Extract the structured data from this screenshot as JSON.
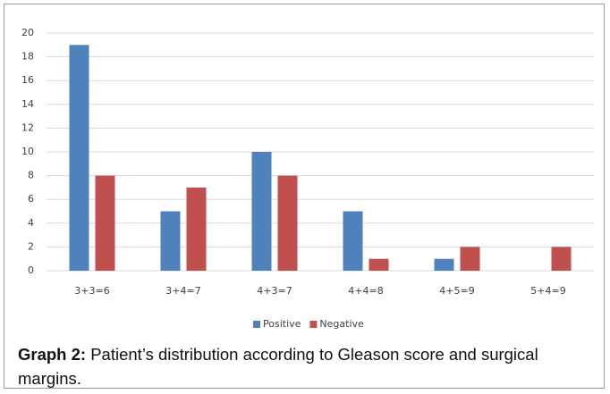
{
  "chart_data": {
    "type": "bar",
    "categories": [
      "3+3=6",
      "3+4=7",
      "4+3=7",
      "4+4=8",
      "4+5=9",
      "5+4=9"
    ],
    "series": [
      {
        "name": "Positive",
        "color": "#4f81bd",
        "values": [
          19,
          5,
          10,
          5,
          1,
          0
        ]
      },
      {
        "name": "Negative",
        "color": "#c0504d",
        "values": [
          8,
          7,
          8,
          1,
          2,
          2
        ]
      }
    ],
    "ylim": [
      0,
      20
    ],
    "yticks": [
      0,
      2,
      4,
      6,
      8,
      10,
      12,
      14,
      16,
      18,
      20
    ],
    "grid": true,
    "legend": "bottom"
  },
  "caption": {
    "label": "Graph 2:",
    "text": "Patient’s distribution according to Gleason score and surgical margins."
  }
}
